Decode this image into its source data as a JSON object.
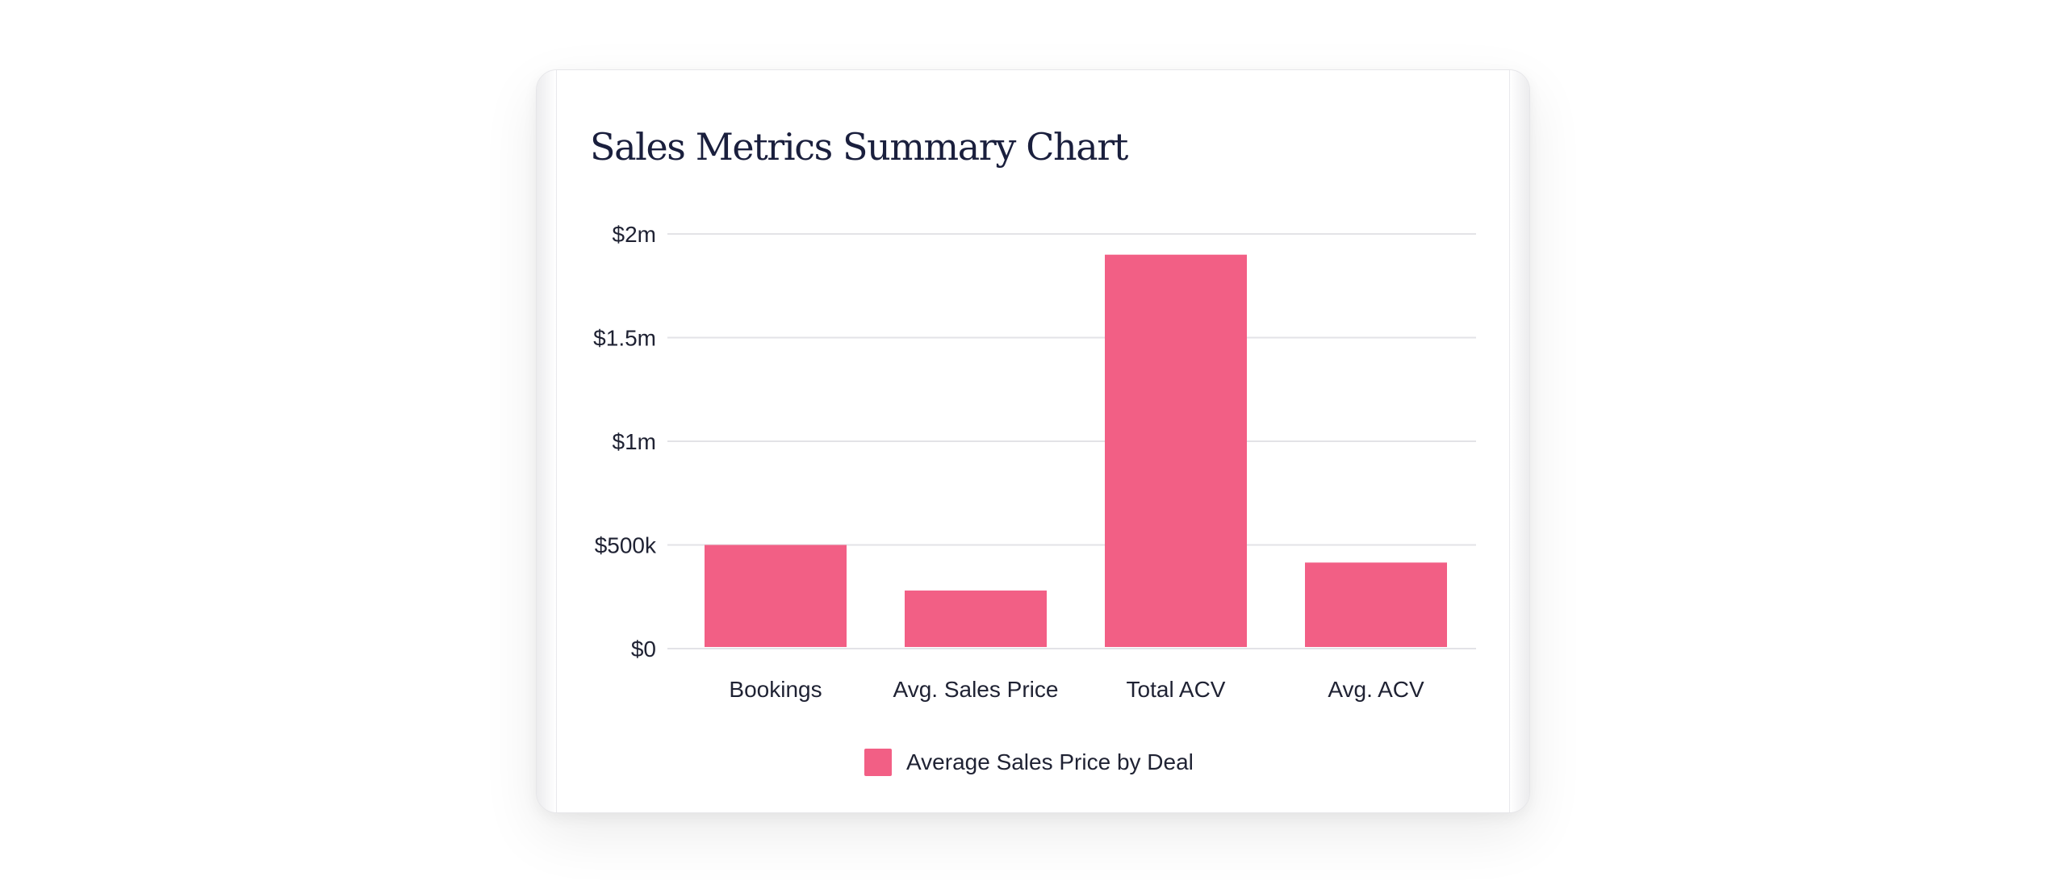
{
  "colors": {
    "bar": "#f25f85",
    "grid": "#e3e3e7",
    "text": "#1f2233",
    "title": "#1a1f3d"
  },
  "chart_data": {
    "type": "bar",
    "title": "Sales Metrics Summary Chart",
    "xlabel": "",
    "ylabel": "",
    "categories": [
      "Bookings",
      "Avg. Sales Price",
      "Total ACV",
      "Avg. ACV"
    ],
    "series": [
      {
        "name": "Average Sales Price by Deal",
        "values": [
          500000,
          280000,
          1900000,
          415000
        ]
      }
    ],
    "ylim": [
      0,
      2000000
    ],
    "yticks": [
      0,
      500000,
      1000000,
      1500000,
      2000000
    ],
    "ytick_labels": [
      "$0",
      "$500k",
      "$1m",
      "$1.5m",
      "$2m"
    ],
    "grid": true,
    "legend_position": "bottom-center"
  }
}
